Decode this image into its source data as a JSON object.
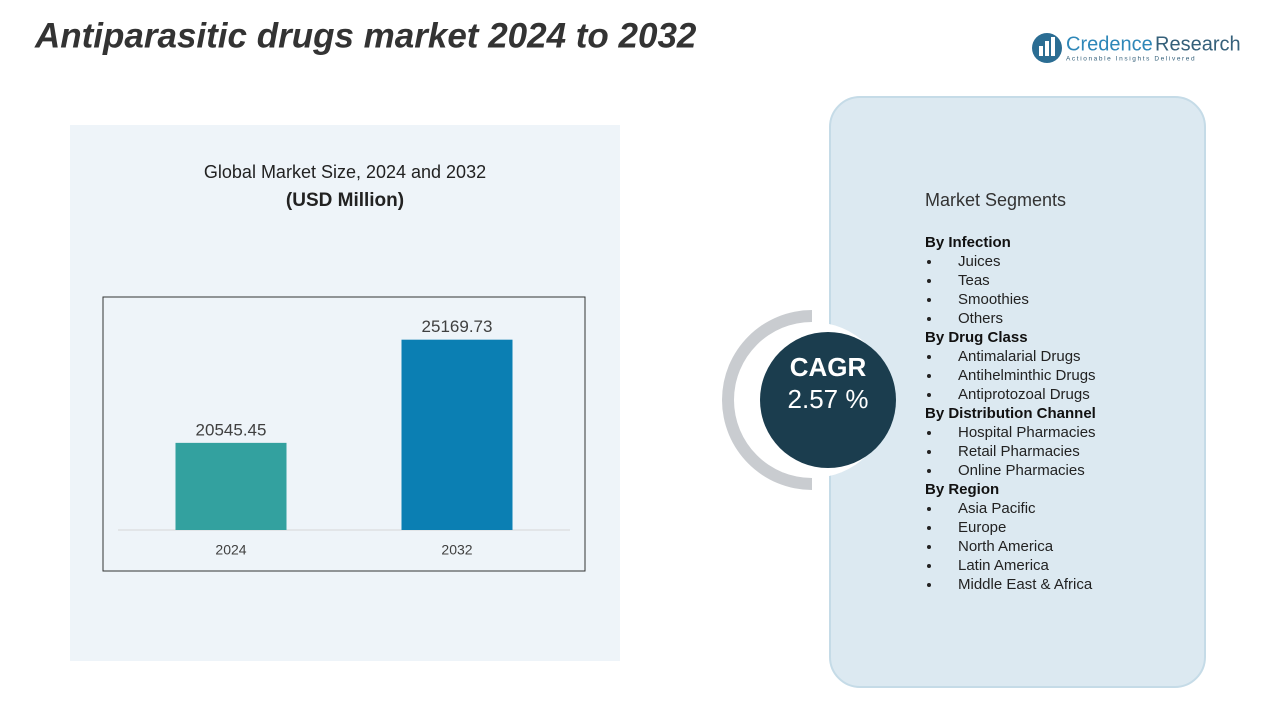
{
  "header": {
    "title": "Antiparasitic drugs market 2024 to 2032",
    "brand_first": "Credence",
    "brand_second": "Research",
    "tagline": "Actionable Insights Delivered"
  },
  "chart_data": {
    "type": "bar",
    "title": "Global Market Size, 2024 and 2032",
    "subtitle": "(USD Million)",
    "categories": [
      "2024",
      "2032"
    ],
    "values": [
      20545.45,
      25169.73
    ],
    "colors": [
      "#33a19f",
      "#0b7fb3"
    ],
    "ylim": [
      16640,
      26500
    ]
  },
  "cagr": {
    "label": "CAGR",
    "value": "2.57 %"
  },
  "segments": {
    "title": "Market Segments",
    "groups": [
      {
        "heading": "By Infection",
        "items": [
          "Juices",
          "Teas",
          "Smoothies",
          "Others"
        ]
      },
      {
        "heading": "By Drug Class",
        "items": [
          "Antimalarial Drugs",
          "Antihelminthic Drugs",
          "Antiprotozoal Drugs"
        ]
      },
      {
        "heading": "By Distribution Channel",
        "items": [
          "Hospital Pharmacies",
          "Retail Pharmacies",
          "Online Pharmacies"
        ]
      },
      {
        "heading": "By Region",
        "items": [
          "Asia Pacific",
          "Europe",
          "North America",
          "Latin America",
          "Middle East & Africa"
        ]
      }
    ]
  }
}
